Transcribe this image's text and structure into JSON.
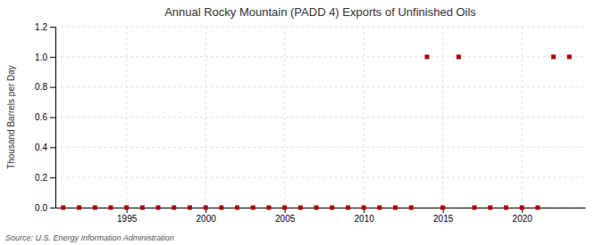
{
  "chart_data": {
    "type": "scatter",
    "title": "Annual Rocky Mountain (PADD 4) Exports of Unfinished Oils",
    "y_label": "Thousand Barrels per Day",
    "source": "Source: U.S. Energy Information Administration",
    "x": [
      1991,
      1992,
      1993,
      1994,
      1995,
      1996,
      1997,
      1998,
      1999,
      2000,
      2001,
      2002,
      2003,
      2004,
      2005,
      2006,
      2007,
      2008,
      2009,
      2010,
      2011,
      2012,
      2013,
      2014,
      2015,
      2016,
      2017,
      2018,
      2019,
      2020,
      2021,
      2022,
      2023
    ],
    "values": [
      0.0,
      0.0,
      0.0,
      0.0,
      0.0,
      0.0,
      0.0,
      0.0,
      0.0,
      0.0,
      0.0,
      0.0,
      0.0,
      0.0,
      0.0,
      0.0,
      0.0,
      0.0,
      0.0,
      0.0,
      0.0,
      0.0,
      0.0,
      1.0,
      0.0,
      1.0,
      0.0,
      0.0,
      0.0,
      0.0,
      0.0,
      1.0,
      1.0
    ],
    "color": "#aa0000",
    "marker": "square",
    "xlim": [
      1990.5,
      2024
    ],
    "xticks": [
      1995,
      2000,
      2005,
      2010,
      2015,
      2020
    ],
    "ylim": [
      0,
      1.2
    ],
    "yticks": [
      {
        "value": 0.0,
        "label": "0.0"
      },
      0.2,
      0.4,
      0.6,
      0.8,
      {
        "value": 1.0,
        "label": "1.0"
      },
      1.2
    ],
    "grid": true
  }
}
